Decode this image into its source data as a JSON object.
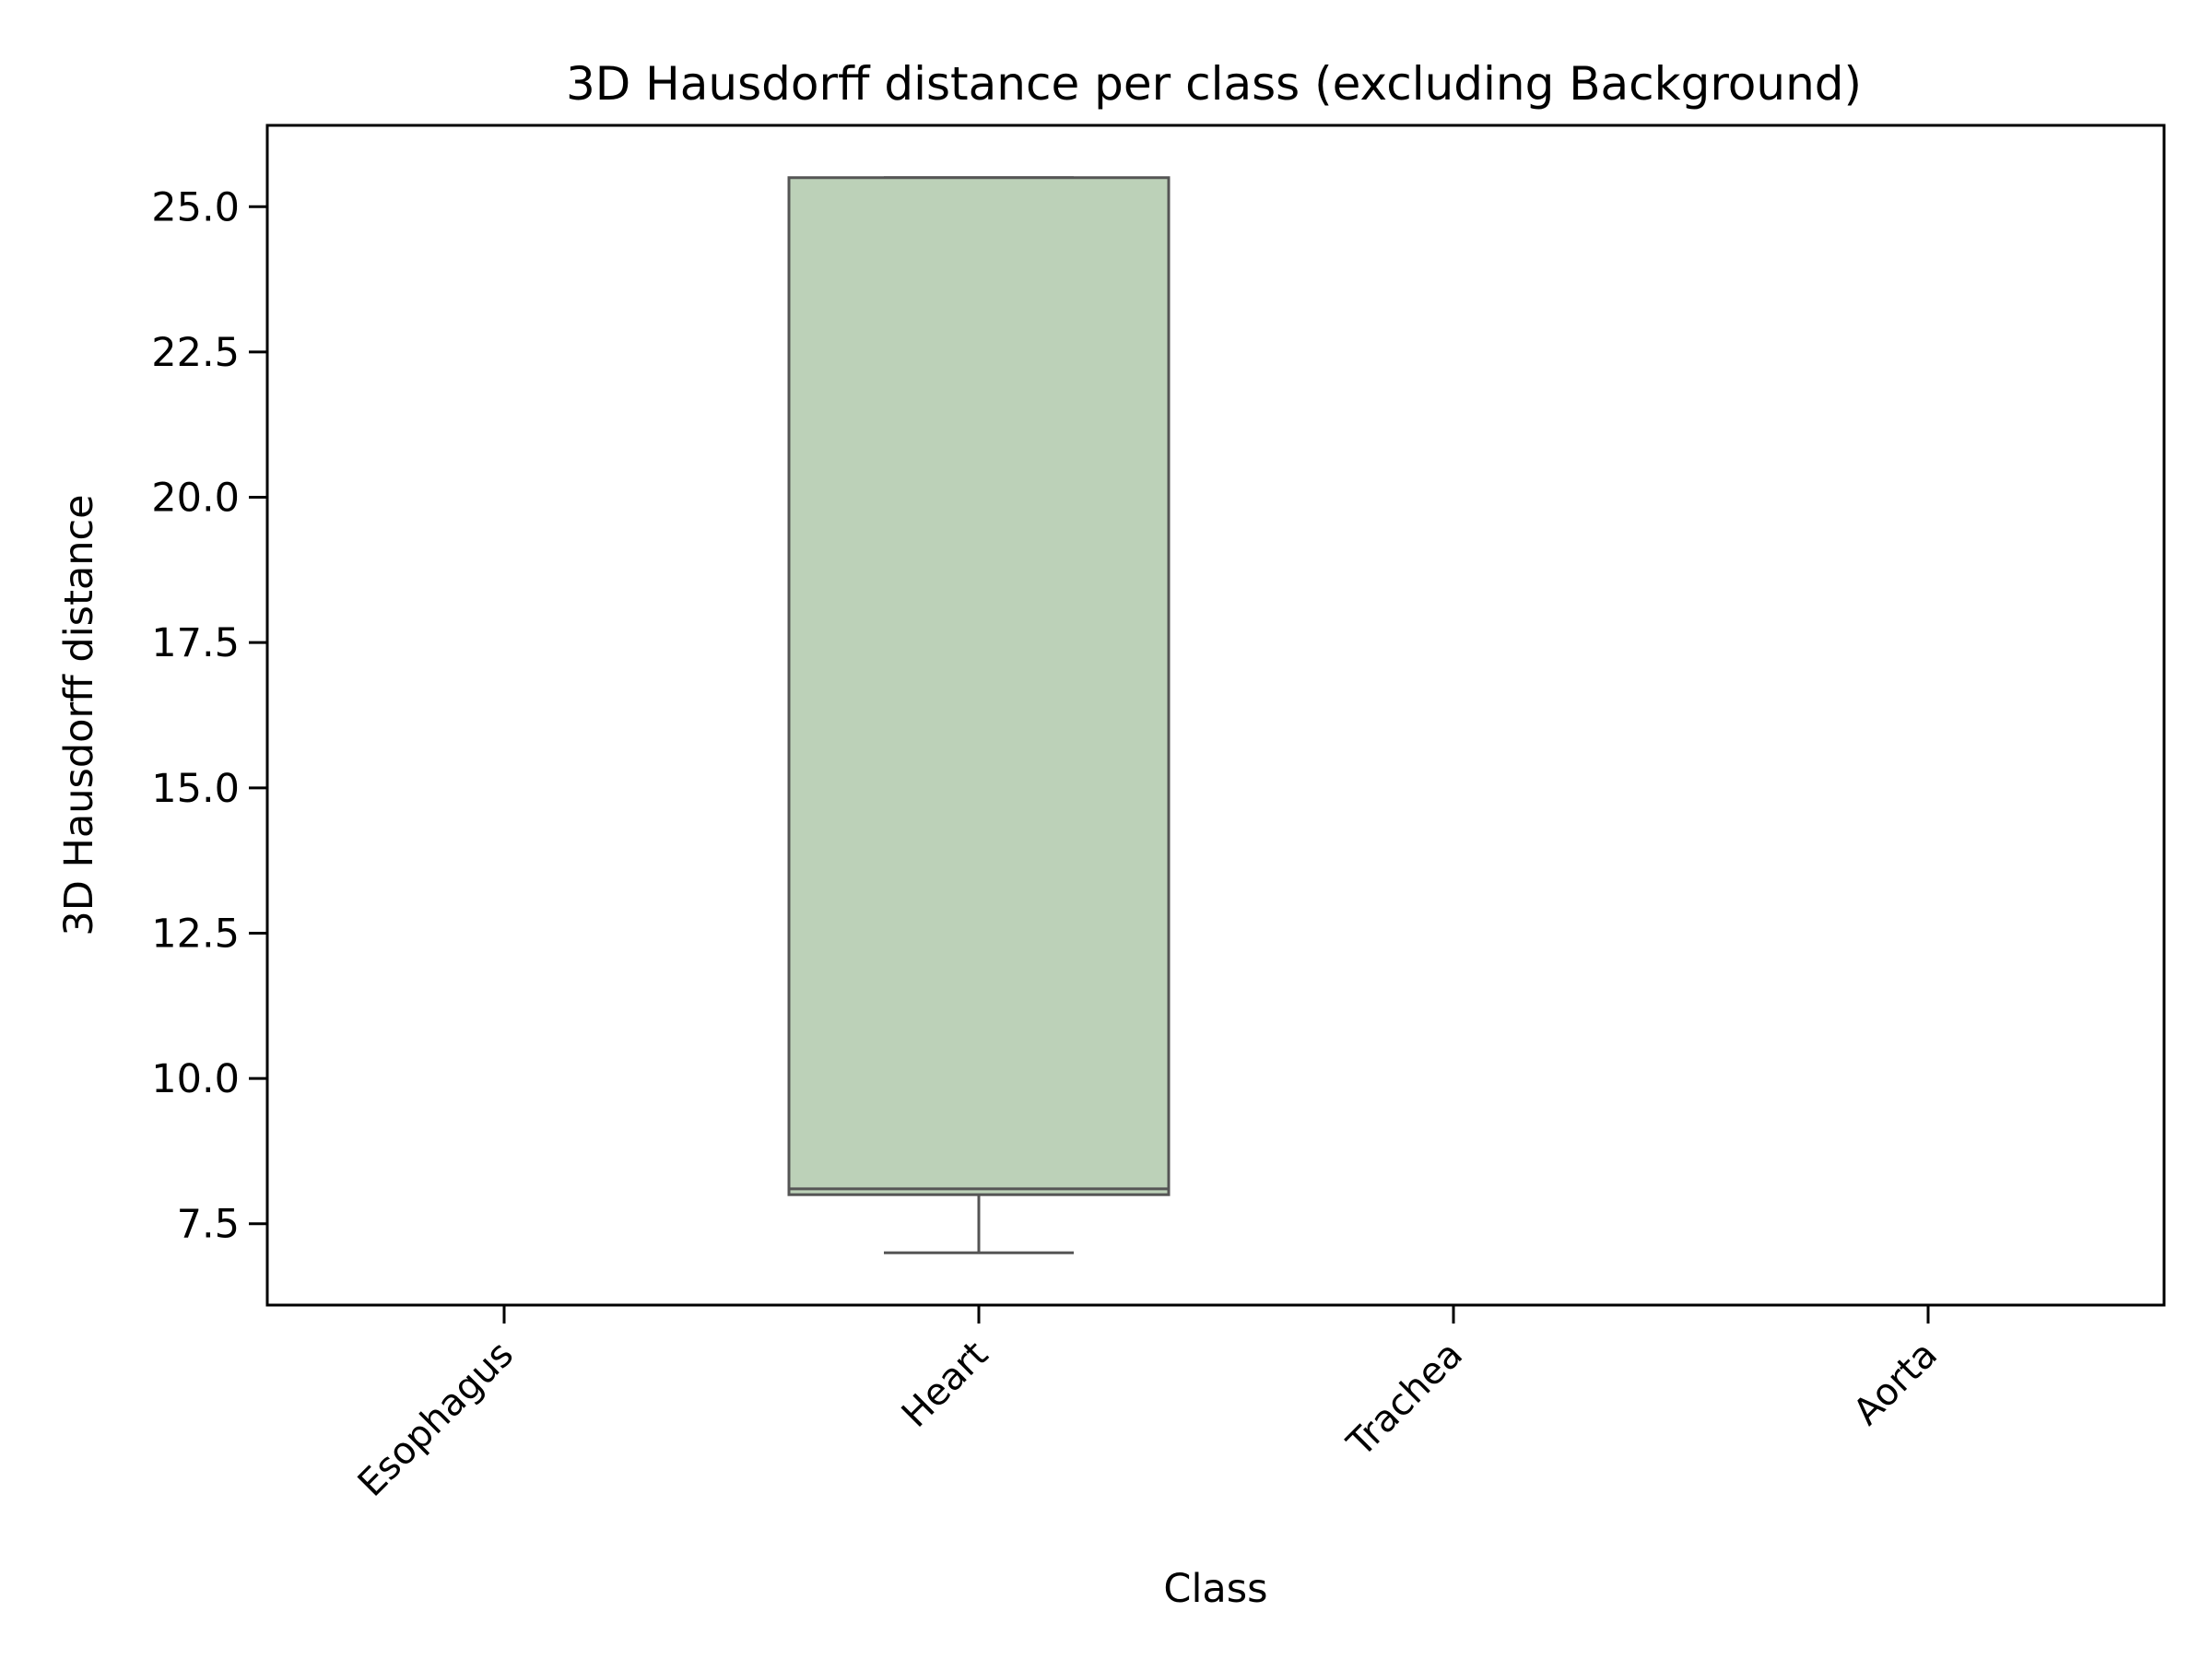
{
  "chart_data": {
    "type": "box",
    "title": "3D Hausdorff distance per class (excluding Background)",
    "xlabel": "Class",
    "ylabel": "3D Hausdorff distance",
    "categories": [
      "Esophagus",
      "Heart",
      "Trachea",
      "Aorta"
    ],
    "ylim": [
      6.1,
      26.4
    ],
    "yticks": [
      7.5,
      10.0,
      12.5,
      15.0,
      17.5,
      20.0,
      22.5,
      25.0
    ],
    "grid": false,
    "boxes": [
      {
        "category": "Heart",
        "whisker_low": 7.0,
        "q1": 8.0,
        "median": 8.1,
        "q3": 25.5,
        "whisker_high": 25.5,
        "color": "#bcd1b8",
        "edge_color": "#555555"
      }
    ]
  }
}
